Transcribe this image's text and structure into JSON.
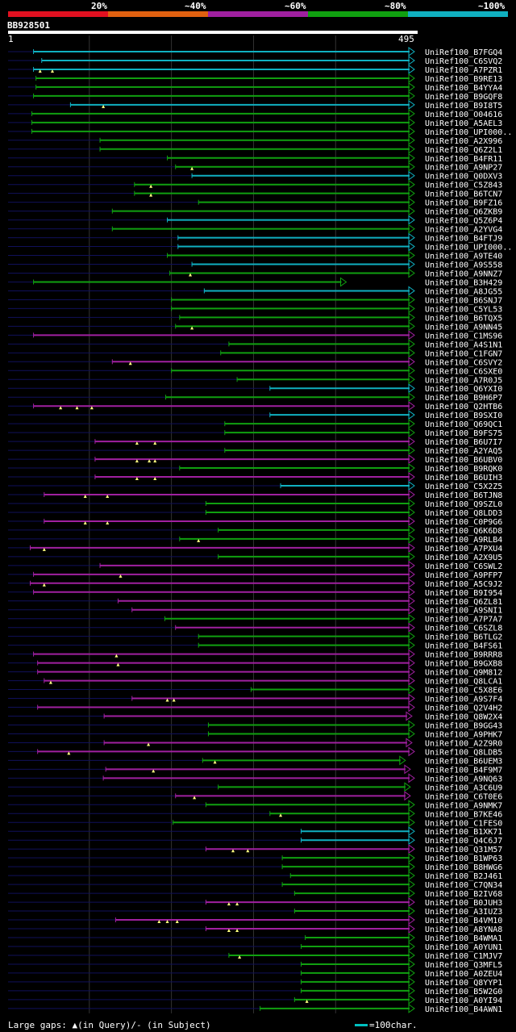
{
  "legend": {
    "labels": [
      "20%",
      "~40%",
      "~60%",
      "~80%",
      "~100%"
    ],
    "colors": [
      "#e01020",
      "#e06010",
      "#a020a0",
      "#10a010",
      "#10b0c0"
    ]
  },
  "query": {
    "id": "BB928501",
    "start": "1",
    "end": "495"
  },
  "footer": {
    "gaps_text": "Large gaps: ▲(in Query)/- (in Subject)",
    "scale_text": "=100char."
  },
  "chart_data": {
    "type": "alignment-overview",
    "query_length": 495,
    "hits": [
      {
        "name": "UniRef100_B7FGQ4",
        "start": 32,
        "end": 495,
        "cls": 4,
        "tri": []
      },
      {
        "name": "UniRef100_C6SVQ2",
        "start": 42,
        "end": 495,
        "cls": 4,
        "tri": []
      },
      {
        "name": "UniRef100_A7PZR1",
        "start": 32,
        "end": 495,
        "cls": 4,
        "tri": [
          40,
          55
        ]
      },
      {
        "name": "UniRef100_B9RE13",
        "start": 35,
        "end": 495,
        "cls": 3,
        "tri": []
      },
      {
        "name": "UniRef100_B4YYA4",
        "start": 35,
        "end": 495,
        "cls": 3,
        "tri": []
      },
      {
        "name": "UniRef100_B9GQF8",
        "start": 32,
        "end": 495,
        "cls": 3,
        "tri": []
      },
      {
        "name": "UniRef100_B9I8T5",
        "start": 77,
        "end": 495,
        "cls": 4,
        "tri": [
          117
        ]
      },
      {
        "name": "UniRef100_O04616",
        "start": 30,
        "end": 495,
        "cls": 3,
        "tri": []
      },
      {
        "name": "UniRef100_A5AEL3",
        "start": 30,
        "end": 495,
        "cls": 3,
        "tri": []
      },
      {
        "name": "UniRef100_UPI000..",
        "start": 30,
        "end": 495,
        "cls": 3,
        "tri": []
      },
      {
        "name": "UniRef100_A2X996",
        "start": 113,
        "end": 495,
        "cls": 3,
        "tri": []
      },
      {
        "name": "UniRef100_Q6Z2L1",
        "start": 113,
        "end": 495,
        "cls": 3,
        "tri": []
      },
      {
        "name": "UniRef100_B4FR11",
        "start": 195,
        "end": 495,
        "cls": 3,
        "tri": []
      },
      {
        "name": "UniRef100_A9NP27",
        "start": 205,
        "end": 495,
        "cls": 3,
        "tri": [
          225
        ]
      },
      {
        "name": "UniRef100_Q0DXV3",
        "start": 225,
        "end": 495,
        "cls": 4,
        "tri": []
      },
      {
        "name": "UniRef100_C5Z843",
        "start": 155,
        "end": 495,
        "cls": 3,
        "tri": [
          175
        ]
      },
      {
        "name": "UniRef100_B6TCN7",
        "start": 155,
        "end": 495,
        "cls": 3,
        "tri": [
          175
        ]
      },
      {
        "name": "UniRef100_B9FZ16",
        "start": 233,
        "end": 495,
        "cls": 3,
        "tri": []
      },
      {
        "name": "UniRef100_Q6ZKB9",
        "start": 128,
        "end": 495,
        "cls": 3,
        "tri": []
      },
      {
        "name": "UniRef100_Q5Z6P4",
        "start": 195,
        "end": 495,
        "cls": 4,
        "tri": []
      },
      {
        "name": "UniRef100_A2YVG4",
        "start": 128,
        "end": 495,
        "cls": 3,
        "tri": []
      },
      {
        "name": "UniRef100_B4FTJ9",
        "start": 208,
        "end": 495,
        "cls": 4,
        "tri": []
      },
      {
        "name": "UniRef100_UPI000..",
        "start": 208,
        "end": 495,
        "cls": 4,
        "tri": []
      },
      {
        "name": "UniRef100_A9TE40",
        "start": 195,
        "end": 495,
        "cls": 3,
        "tri": []
      },
      {
        "name": "UniRef100_A9S558",
        "start": 225,
        "end": 495,
        "cls": 4,
        "tri": []
      },
      {
        "name": "UniRef100_A9NNZ7",
        "start": 198,
        "end": 495,
        "cls": 3,
        "tri": [
          223
        ]
      },
      {
        "name": "UniRef100_B3H429",
        "start": 32,
        "end": 412,
        "cls": 3,
        "tri": []
      },
      {
        "name": "UniRef100_A8JG55",
        "start": 240,
        "end": 495,
        "cls": 4,
        "tri": []
      },
      {
        "name": "UniRef100_B6SNJ7",
        "start": 200,
        "end": 495,
        "cls": 3,
        "tri": []
      },
      {
        "name": "UniRef100_C5YL53",
        "start": 200,
        "end": 495,
        "cls": 3,
        "tri": []
      },
      {
        "name": "UniRef100_B6TQX5",
        "start": 210,
        "end": 495,
        "cls": 3,
        "tri": []
      },
      {
        "name": "UniRef100_A9NN45",
        "start": 205,
        "end": 495,
        "cls": 3,
        "tri": [
          225
        ]
      },
      {
        "name": "UniRef100_C1MS96",
        "start": 32,
        "end": 495,
        "cls": 2,
        "tri": []
      },
      {
        "name": "UniRef100_A4S1N1",
        "start": 270,
        "end": 495,
        "cls": 3,
        "tri": []
      },
      {
        "name": "UniRef100_C1FGN7",
        "start": 260,
        "end": 495,
        "cls": 3,
        "tri": []
      },
      {
        "name": "UniRef100_C6SVY2",
        "start": 128,
        "end": 495,
        "cls": 2,
        "tri": [
          150
        ]
      },
      {
        "name": "UniRef100_C6SXE0",
        "start": 200,
        "end": 495,
        "cls": 3,
        "tri": []
      },
      {
        "name": "UniRef100_A7R0J5",
        "start": 280,
        "end": 495,
        "cls": 3,
        "tri": []
      },
      {
        "name": "UniRef100_Q6YXI0",
        "start": 320,
        "end": 495,
        "cls": 4,
        "tri": []
      },
      {
        "name": "UniRef100_B9H6P7",
        "start": 193,
        "end": 495,
        "cls": 3,
        "tri": []
      },
      {
        "name": "UniRef100_Q2HTB6",
        "start": 32,
        "end": 495,
        "cls": 2,
        "tri": [
          65,
          85,
          103
        ]
      },
      {
        "name": "UniRef100_B9SXI0",
        "start": 320,
        "end": 495,
        "cls": 4,
        "tri": []
      },
      {
        "name": "UniRef100_Q69QC1",
        "start": 265,
        "end": 495,
        "cls": 3,
        "tri": []
      },
      {
        "name": "UniRef100_B9FS75",
        "start": 265,
        "end": 495,
        "cls": 3,
        "tri": []
      },
      {
        "name": "UniRef100_B6U7I7",
        "start": 107,
        "end": 495,
        "cls": 2,
        "tri": [
          158,
          180
        ]
      },
      {
        "name": "UniRef100_A2YAQ5",
        "start": 265,
        "end": 495,
        "cls": 3,
        "tri": []
      },
      {
        "name": "UniRef100_B6UBV0",
        "start": 107,
        "end": 495,
        "cls": 2,
        "tri": [
          158,
          173,
          180
        ]
      },
      {
        "name": "UniRef100_B9RQK0",
        "start": 210,
        "end": 495,
        "cls": 3,
        "tri": []
      },
      {
        "name": "UniRef100_B6UIH3",
        "start": 107,
        "end": 495,
        "cls": 2,
        "tri": [
          158,
          180
        ]
      },
      {
        "name": "UniRef100_C5X2Z5",
        "start": 333,
        "end": 495,
        "cls": 4,
        "tri": []
      },
      {
        "name": "UniRef100_B6TJN8",
        "start": 45,
        "end": 495,
        "cls": 2,
        "tri": [
          95,
          122
        ]
      },
      {
        "name": "UniRef100_Q9SZL0",
        "start": 242,
        "end": 495,
        "cls": 3,
        "tri": []
      },
      {
        "name": "UniRef100_Q8LDD3",
        "start": 242,
        "end": 495,
        "cls": 3,
        "tri": []
      },
      {
        "name": "UniRef100_C0P9G6",
        "start": 45,
        "end": 495,
        "cls": 2,
        "tri": [
          95,
          122
        ]
      },
      {
        "name": "UniRef100_Q6K6D8",
        "start": 257,
        "end": 495,
        "cls": 3,
        "tri": []
      },
      {
        "name": "UniRef100_A9RLB4",
        "start": 210,
        "end": 495,
        "cls": 3,
        "tri": [
          233
        ]
      },
      {
        "name": "UniRef100_A7PXU4",
        "start": 28,
        "end": 495,
        "cls": 2,
        "tri": [
          45
        ]
      },
      {
        "name": "UniRef100_A2X9U5",
        "start": 257,
        "end": 495,
        "cls": 3,
        "tri": []
      },
      {
        "name": "UniRef100_C6SWL2",
        "start": 113,
        "end": 495,
        "cls": 2,
        "tri": []
      },
      {
        "name": "UniRef100_A9PFP7",
        "start": 32,
        "end": 495,
        "cls": 2,
        "tri": [
          138
        ]
      },
      {
        "name": "UniRef100_A5C9J2",
        "start": 28,
        "end": 495,
        "cls": 2,
        "tri": [
          45
        ]
      },
      {
        "name": "UniRef100_B9I954",
        "start": 32,
        "end": 495,
        "cls": 2,
        "tri": []
      },
      {
        "name": "UniRef100_Q6ZL81",
        "start": 135,
        "end": 495,
        "cls": 2,
        "tri": []
      },
      {
        "name": "UniRef100_A9SNI1",
        "start": 152,
        "end": 495,
        "cls": 2,
        "tri": []
      },
      {
        "name": "UniRef100_A7P7A7",
        "start": 192,
        "end": 495,
        "cls": 3,
        "tri": []
      },
      {
        "name": "UniRef100_C6SZL8",
        "start": 205,
        "end": 495,
        "cls": 2,
        "tri": []
      },
      {
        "name": "UniRef100_B6TLG2",
        "start": 233,
        "end": 495,
        "cls": 3,
        "tri": []
      },
      {
        "name": "UniRef100_B4FS61",
        "start": 233,
        "end": 495,
        "cls": 3,
        "tri": []
      },
      {
        "name": "UniRef100_B9RRR8",
        "start": 32,
        "end": 495,
        "cls": 2,
        "tri": [
          133
        ]
      },
      {
        "name": "UniRef100_B9GXB8",
        "start": 37,
        "end": 495,
        "cls": 2,
        "tri": [
          135
        ]
      },
      {
        "name": "UniRef100_Q9M812",
        "start": 37,
        "end": 495,
        "cls": 2,
        "tri": []
      },
      {
        "name": "UniRef100_Q8LCA1",
        "start": 45,
        "end": 495,
        "cls": 2,
        "tri": [
          53
        ]
      },
      {
        "name": "UniRef100_C5X8E6",
        "start": 297,
        "end": 495,
        "cls": 3,
        "tri": []
      },
      {
        "name": "UniRef100_A9S7F4",
        "start": 152,
        "end": 495,
        "cls": 2,
        "tri": [
          195,
          203
        ]
      },
      {
        "name": "UniRef100_Q2V4H2",
        "start": 37,
        "end": 495,
        "cls": 2,
        "tri": []
      },
      {
        "name": "UniRef100_Q8W2X4",
        "start": 118,
        "end": 492,
        "cls": 2,
        "tri": []
      },
      {
        "name": "UniRef100_B9GG43",
        "start": 245,
        "end": 495,
        "cls": 3,
        "tri": []
      },
      {
        "name": "UniRef100_A9PHK7",
        "start": 245,
        "end": 495,
        "cls": 3,
        "tri": []
      },
      {
        "name": "UniRef100_A2Z9R0",
        "start": 118,
        "end": 492,
        "cls": 2,
        "tri": [
          172
        ]
      },
      {
        "name": "UniRef100_Q8LDB5",
        "start": 37,
        "end": 495,
        "cls": 2,
        "tri": [
          75
        ]
      },
      {
        "name": "UniRef100_B6UEM3",
        "start": 238,
        "end": 484,
        "cls": 3,
        "tri": [
          253
        ]
      },
      {
        "name": "UniRef100_B4F9M7",
        "start": 120,
        "end": 490,
        "cls": 2,
        "tri": [
          178
        ]
      },
      {
        "name": "UniRef100_A9NQ63",
        "start": 117,
        "end": 495,
        "cls": 2,
        "tri": []
      },
      {
        "name": "UniRef100_A3C6U9",
        "start": 257,
        "end": 490,
        "cls": 3,
        "tri": []
      },
      {
        "name": "UniRef100_C6T0E6",
        "start": 205,
        "end": 490,
        "cls": 2,
        "tri": [
          228
        ]
      },
      {
        "name": "UniRef100_A9NMK7",
        "start": 242,
        "end": 495,
        "cls": 3,
        "tri": []
      },
      {
        "name": "UniRef100_B7KE46",
        "start": 320,
        "end": 495,
        "cls": 3,
        "tri": [
          333
        ]
      },
      {
        "name": "UniRef100_C1FES0",
        "start": 202,
        "end": 495,
        "cls": 3,
        "tri": []
      },
      {
        "name": "UniRef100_B1XK71",
        "start": 358,
        "end": 495,
        "cls": 4,
        "tri": []
      },
      {
        "name": "UniRef100_Q4C6J7",
        "start": 358,
        "end": 495,
        "cls": 4,
        "tri": []
      },
      {
        "name": "UniRef100_Q31M57",
        "start": 242,
        "end": 495,
        "cls": 2,
        "tri": [
          275,
          293
        ]
      },
      {
        "name": "UniRef100_B1WP63",
        "start": 335,
        "end": 495,
        "cls": 3,
        "tri": []
      },
      {
        "name": "UniRef100_B8HWG6",
        "start": 335,
        "end": 495,
        "cls": 3,
        "tri": []
      },
      {
        "name": "UniRef100_B2J461",
        "start": 345,
        "end": 495,
        "cls": 3,
        "tri": []
      },
      {
        "name": "UniRef100_C7QN34",
        "start": 335,
        "end": 495,
        "cls": 3,
        "tri": []
      },
      {
        "name": "UniRef100_B2IV68",
        "start": 350,
        "end": 495,
        "cls": 3,
        "tri": []
      },
      {
        "name": "UniRef100_B0JUH3",
        "start": 242,
        "end": 495,
        "cls": 2,
        "tri": [
          270,
          280
        ]
      },
      {
        "name": "UniRef100_A3IUZ3",
        "start": 350,
        "end": 495,
        "cls": 3,
        "tri": []
      },
      {
        "name": "UniRef100_B4VM10",
        "start": 132,
        "end": 495,
        "cls": 2,
        "tri": [
          185,
          195,
          207
        ]
      },
      {
        "name": "UniRef100_A8YNA8",
        "start": 242,
        "end": 495,
        "cls": 2,
        "tri": [
          270,
          280
        ]
      },
      {
        "name": "UniRef100_B4WMA1",
        "start": 363,
        "end": 495,
        "cls": 3,
        "tri": []
      },
      {
        "name": "UniRef100_A0YUN1",
        "start": 358,
        "end": 495,
        "cls": 3,
        "tri": []
      },
      {
        "name": "UniRef100_C1MJV7",
        "start": 270,
        "end": 495,
        "cls": 3,
        "tri": [
          283
        ]
      },
      {
        "name": "UniRef100_Q3MFL5",
        "start": 358,
        "end": 495,
        "cls": 3,
        "tri": []
      },
      {
        "name": "UniRef100_A0ZEU4",
        "start": 358,
        "end": 495,
        "cls": 3,
        "tri": []
      },
      {
        "name": "UniRef100_Q8YYP1",
        "start": 358,
        "end": 495,
        "cls": 3,
        "tri": []
      },
      {
        "name": "UniRef100_B5W2G0",
        "start": 358,
        "end": 495,
        "cls": 3,
        "tri": []
      },
      {
        "name": "UniRef100_A0YI94",
        "start": 350,
        "end": 495,
        "cls": 3,
        "tri": [
          365
        ]
      },
      {
        "name": "UniRef100_B4AWN1",
        "start": 308,
        "end": 495,
        "cls": 3,
        "tri": []
      }
    ]
  }
}
